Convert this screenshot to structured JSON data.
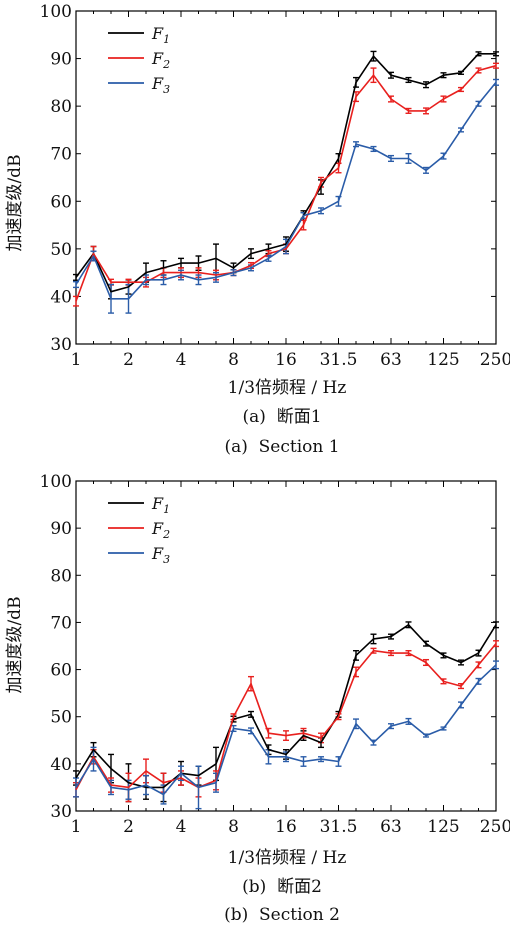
{
  "chart_data": [
    {
      "type": "line",
      "ylabel": "加速度级/dB",
      "xlabel": "1/3倍频程 / Hz",
      "caption_cn": "(a)  断面1",
      "caption_en": "(a)  Section 1",
      "ylim": [
        30,
        100
      ],
      "yticks": [
        "30",
        "40",
        "50",
        "60",
        "70",
        "80",
        "90",
        "100"
      ],
      "x_tick_labels": [
        "1",
        "2",
        "4",
        "8",
        "16",
        "31.5",
        "63",
        "125",
        "250"
      ],
      "x_bands": [
        "1",
        "1.25",
        "1.6",
        "2",
        "2.5",
        "3.15",
        "4",
        "5",
        "6.3",
        "8",
        "10",
        "12.5",
        "16",
        "20",
        "25",
        "31.5",
        "40",
        "50",
        "63",
        "80",
        "100",
        "125",
        "160",
        "200",
        "250"
      ],
      "legend_position": "top-left",
      "series": [
        {
          "name": "F",
          "subscript": "1",
          "color": "#000000",
          "values": [
            44,
            49,
            41,
            42,
            45,
            46,
            47,
            47,
            48,
            46,
            49,
            50,
            51,
            57,
            63,
            69,
            85,
            90.5,
            86.5,
            85.5,
            84.5,
            86.5,
            87,
            91,
            91
          ],
          "errors": [
            0.6,
            1.5,
            1.5,
            1.5,
            2,
            1.5,
            1,
            1.5,
            3,
            1,
            1,
            1,
            1.5,
            1,
            1.5,
            1,
            1,
            1,
            0.6,
            0.5,
            0.6,
            0.5,
            0.3,
            0.4,
            0.4
          ]
        },
        {
          "name": "F",
          "subscript": "2",
          "color": "#e8201e",
          "values": [
            39,
            49,
            43,
            43,
            43,
            45,
            45,
            45,
            44.5,
            45,
            46.5,
            49,
            50,
            55,
            64,
            67,
            82,
            86.5,
            81.5,
            79,
            79,
            81.5,
            83.5,
            87.5,
            88.5
          ],
          "errors": [
            1,
            1.5,
            0.6,
            0.6,
            1,
            1,
            1,
            1,
            1,
            0.6,
            0.6,
            0.6,
            1,
            1,
            1,
            1,
            1,
            1.5,
            0.6,
            0.5,
            0.6,
            0.6,
            0.4,
            0.5,
            0.5
          ]
        },
        {
          "name": "F",
          "subscript": "3",
          "color": "#2a5ca8",
          "values": [
            42.5,
            48.5,
            39.5,
            39.5,
            43.5,
            43.5,
            44.5,
            43.5,
            44,
            45,
            46,
            48,
            50.5,
            57,
            58,
            60,
            72,
            71,
            69,
            69,
            66.5,
            69.5,
            75,
            80.5,
            85
          ],
          "errors": [
            0.6,
            1,
            3,
            3,
            1,
            1,
            1,
            1,
            1,
            0.6,
            0.6,
            0.6,
            1.5,
            0.6,
            0.6,
            1,
            0.5,
            0.5,
            0.6,
            1,
            0.6,
            0.6,
            0.4,
            0.5,
            0.6
          ]
        }
      ]
    },
    {
      "type": "line",
      "ylabel": "加速度级/dB",
      "xlabel": "1/3倍频程 / Hz",
      "caption_cn": "(b)  断面2",
      "caption_en": "(b)  Section 2",
      "ylim": [
        30,
        100
      ],
      "yticks": [
        "30",
        "40",
        "50",
        "60",
        "70",
        "80",
        "90",
        "100"
      ],
      "x_tick_labels": [
        "1",
        "2",
        "4",
        "8",
        "16",
        "31.5",
        "63",
        "125",
        "250"
      ],
      "x_bands": [
        "1",
        "1.25",
        "1.6",
        "2",
        "2.5",
        "3.15",
        "4",
        "5",
        "6.3",
        "8",
        "10",
        "12.5",
        "16",
        "20",
        "25",
        "31.5",
        "40",
        "50",
        "63",
        "80",
        "100",
        "125",
        "160",
        "200",
        "250"
      ],
      "legend_position": "top-left",
      "series": [
        {
          "name": "F",
          "subscript": "1",
          "color": "#000000",
          "values": [
            37,
            43,
            39,
            36,
            35,
            35,
            38,
            37.5,
            40,
            49.5,
            50.5,
            43,
            42,
            46,
            44.5,
            50.5,
            63,
            66.5,
            67,
            69.5,
            65.5,
            63,
            61.5,
            63.5,
            69.5
          ],
          "errors": [
            1.5,
            1.5,
            3,
            4,
            2.5,
            3,
            2.5,
            2,
            3.5,
            0.6,
            0.6,
            1,
            1,
            1,
            1,
            0.6,
            1,
            1,
            0.5,
            0.6,
            0.5,
            0.5,
            0.5,
            0.6,
            0.6
          ]
        },
        {
          "name": "F",
          "subscript": "2",
          "color": "#e8201e",
          "values": [
            34.5,
            41.5,
            35.5,
            35,
            38.5,
            36,
            37,
            35,
            36.5,
            50,
            57,
            46.5,
            46,
            46.5,
            45.5,
            50,
            59.5,
            64,
            63.5,
            63.5,
            61.5,
            57.5,
            56.5,
            61,
            65.5
          ],
          "errors": [
            1.5,
            1.5,
            1.5,
            3,
            2.5,
            2,
            1.5,
            2,
            2,
            0.6,
            1.5,
            1,
            1,
            1,
            1,
            0.6,
            1,
            0.5,
            0.5,
            0.5,
            0.6,
            0.5,
            0.5,
            0.6,
            0.6
          ]
        },
        {
          "name": "F",
          "subscript": "3",
          "color": "#2a5ca8",
          "values": [
            35,
            41,
            35,
            34.5,
            35.5,
            33.5,
            38,
            35,
            36,
            47.5,
            47,
            41.5,
            41.5,
            40.5,
            41,
            40.5,
            48.5,
            44.5,
            48,
            49,
            46,
            47.5,
            52.5,
            57.5,
            61
          ],
          "errors": [
            2,
            2.5,
            1.5,
            2,
            2,
            2,
            1.5,
            4.5,
            2,
            0.6,
            0.6,
            1.5,
            1,
            1,
            0.5,
            1,
            1,
            0.5,
            0.5,
            0.6,
            0.3,
            0.3,
            0.6,
            0.6,
            0.8
          ]
        }
      ]
    }
  ]
}
